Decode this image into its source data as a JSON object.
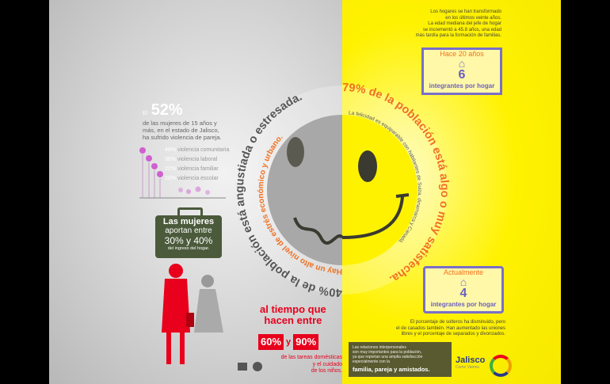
{
  "left": {
    "stat_prefix": "El",
    "stat_value": "52%",
    "stat_text": [
      "de las mujeres de 15 años y",
      "más, en el estado de Jalisco,",
      "ha sufrido violencia de pareja."
    ],
    "violence": [
      {
        "pct": "48%",
        "label": "violencia comunitaria"
      },
      {
        "pct": "36%",
        "label": "violencia laboral"
      },
      {
        "pct": "22%",
        "label": "violencia familiar"
      },
      {
        "pct": "20%",
        "label": "violencia escolar"
      }
    ],
    "briefcase": [
      "Las mujeres",
      "aportan entre",
      "30% y 40%",
      "del ingreso del hogar."
    ],
    "time": [
      "al tiempo que",
      "hacen entre"
    ],
    "pot1": "60%",
    "pot_and": "y",
    "pot2": "90%",
    "tasks": [
      "de las tareas domésticas",
      "y el cuidado",
      "de los niños."
    ]
  },
  "face": {
    "left_arc": "40% de la población está angustiada o estresada.",
    "left_inner_arc": "Hay un alto nivel de estrés económico y urbano.",
    "right_arc": "79% de la población está algo o muy satisfecha.",
    "right_inner_arc": "La felicidad es equiparable con habitantes de Suiza, dinamarca y Canadá.",
    "colors": {
      "grey_face": "#a8a8a8",
      "yellow_face": "#fff200",
      "orange": "#f07020",
      "eye": "#3a3a30"
    }
  },
  "right": {
    "intro": [
      "Los hogares se han transformado",
      "en los últimos veinte años.",
      "La edad mediana del jefe de hogar",
      "se incrementó a 45.8 años, una edad",
      "más tardía para la formación de familias."
    ],
    "house1": {
      "caption": "Hace 20 años",
      "number": "6",
      "footer": "integrantes por hogar"
    },
    "house2": {
      "caption": "Actualmente",
      "number": "4",
      "footer": "integrantes por hogar"
    },
    "singles": [
      "El porcentaje de solteros ha disminuido, pero",
      "el de casados también. Han aumentado las uniones",
      "libres y el porcentaje de separados y divorciados."
    ],
    "relations": [
      "Las relaciones interpersonales",
      "son muy importantes para la población,",
      "ya que reportan una amplia satisfacción",
      "especialmente con la"
    ],
    "relations_bold": "familia, pareja y amistados.",
    "logo": "Jalisco",
    "logo_sub": "Como Vamos"
  }
}
